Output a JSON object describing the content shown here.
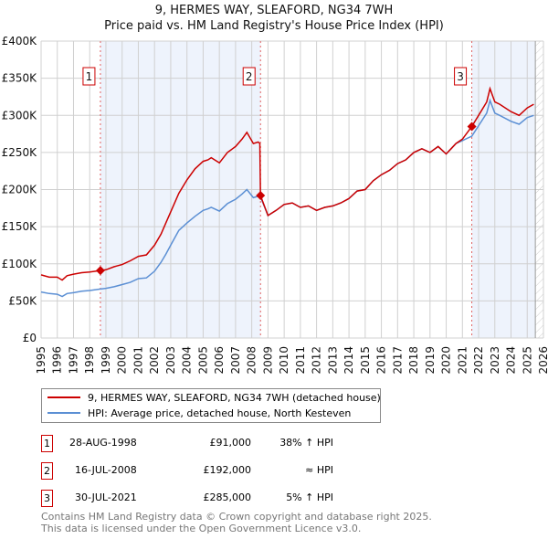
{
  "header": {
    "title": "9, HERMES WAY, SLEAFORD, NG34 7WH",
    "subtitle": "Price paid vs. HM Land Registry's House Price Index (HPI)"
  },
  "legend": {
    "property": "9, HERMES WAY, SLEAFORD, NG34 7WH (detached house)",
    "hpi": "HPI: Average price, detached house, North Kesteven"
  },
  "sales": [
    {
      "num": "1",
      "date": "28-AUG-1998",
      "price": "£91,000",
      "vs_hpi": "38% ↑ HPI"
    },
    {
      "num": "2",
      "date": "16-JUL-2008",
      "price": "£192,000",
      "vs_hpi": "≈ HPI"
    },
    {
      "num": "3",
      "date": "30-JUL-2021",
      "price": "£285,000",
      "vs_hpi": "5% ↑ HPI"
    }
  ],
  "footer": {
    "line1": "Contains HM Land Registry data © Crown copyright and database right 2025.",
    "line2": "This data is licensed under the Open Government Licence v3.0."
  },
  "colors": {
    "property": "#cc0000",
    "hpi": "#5b8fd4",
    "shade": "#eef3fc"
  },
  "chart_data": {
    "type": "line",
    "xlim": [
      1995,
      2026
    ],
    "ylim": [
      0,
      400000
    ],
    "yticks": [
      0,
      50000,
      100000,
      150000,
      200000,
      250000,
      300000,
      350000,
      400000
    ],
    "ytick_labels": [
      "£0",
      "£50K",
      "£100K",
      "£150K",
      "£200K",
      "£250K",
      "£300K",
      "£350K",
      "£400K"
    ],
    "xticks": [
      1995,
      1996,
      1997,
      1998,
      1999,
      2000,
      2001,
      2002,
      2003,
      2004,
      2005,
      2006,
      2007,
      2008,
      2009,
      2010,
      2011,
      2012,
      2013,
      2014,
      2015,
      2016,
      2017,
      2018,
      2019,
      2020,
      2021,
      2022,
      2023,
      2024,
      2025,
      2026
    ],
    "xtick_labels": [
      "1995",
      "1996",
      "1997",
      "1998",
      "1999",
      "2000",
      "2001",
      "2002",
      "2003",
      "2004",
      "2005",
      "2006",
      "2007",
      "2008",
      "2009",
      "2010",
      "2011",
      "2012",
      "2013",
      "2014",
      "2015",
      "2016",
      "2017",
      "2018",
      "2019",
      "2020",
      "2021",
      "2022",
      "2023",
      "2024",
      "2025",
      "2026"
    ],
    "grid": true,
    "shaded_ranges": [
      [
        1998.66,
        2008.54
      ],
      [
        2021.58,
        2025.5
      ]
    ],
    "future_from": 2025.5,
    "sale_markers": [
      {
        "label": "1",
        "x": 1998.66,
        "y": 91000
      },
      {
        "label": "2",
        "x": 2008.54,
        "y": 192000
      },
      {
        "label": "3",
        "x": 2021.58,
        "y": 285000
      }
    ],
    "series": [
      {
        "name": "9, HERMES WAY, SLEAFORD, NG34 7WH (detached house)",
        "color": "#cc0000",
        "x": [
          1995,
          1995.5,
          1996,
          1996.3,
          1996.6,
          1997,
          1997.5,
          1998,
          1998.66,
          1999,
          1999.5,
          2000,
          2000.5,
          2001,
          2001.5,
          2002,
          2002.4,
          2002.7,
          2003,
          2003.5,
          2004,
          2004.5,
          2005,
          2005.3,
          2005.5,
          2006,
          2006.5,
          2007,
          2007.4,
          2007.7,
          2008.1,
          2008.4,
          2008.5,
          2008.54,
          2009,
          2009.5,
          2010,
          2010.5,
          2011,
          2011.5,
          2012,
          2012.5,
          2013,
          2013.5,
          2014,
          2014.5,
          2015,
          2015.5,
          2016,
          2016.5,
          2017,
          2017.5,
          2018,
          2018.5,
          2019,
          2019.5,
          2020,
          2020.3,
          2020.6,
          2021,
          2021.58,
          2022,
          2022.5,
          2022.7,
          2023,
          2023.3,
          2024,
          2024.5,
          2025,
          2025.4
        ],
        "y": [
          85000,
          82000,
          82000,
          78000,
          84000,
          86000,
          88000,
          89000,
          91000,
          92000,
          96000,
          99000,
          104000,
          110000,
          112000,
          125000,
          140000,
          155000,
          170000,
          195000,
          213000,
          228000,
          238000,
          240000,
          243000,
          236000,
          250000,
          258000,
          268000,
          277000,
          262000,
          264000,
          262000,
          192000,
          165000,
          172000,
          180000,
          182000,
          176000,
          178000,
          172000,
          176000,
          178000,
          182000,
          188000,
          198000,
          200000,
          212000,
          220000,
          226000,
          235000,
          240000,
          250000,
          255000,
          250000,
          258000,
          248000,
          255000,
          262000,
          268000,
          285000,
          300000,
          318000,
          336000,
          318000,
          315000,
          305000,
          300000,
          310000,
          315000
        ]
      },
      {
        "name": "HPI: Average price, detached house, North Kesteven",
        "color": "#5b8fd4",
        "x": [
          1995,
          1995.5,
          1996,
          1996.3,
          1996.6,
          1997,
          1997.5,
          1998,
          1998.66,
          1999,
          1999.5,
          2000,
          2000.5,
          2001,
          2001.5,
          2002,
          2002.4,
          2002.7,
          2003,
          2003.5,
          2004,
          2004.5,
          2005,
          2005.3,
          2005.5,
          2006,
          2006.5,
          2007,
          2007.4,
          2007.7,
          2008.1,
          2008.4,
          2008.54,
          2009,
          2009.5,
          2010,
          2010.5,
          2011,
          2011.5,
          2012,
          2012.5,
          2013,
          2013.5,
          2014,
          2014.5,
          2015,
          2015.5,
          2016,
          2016.5,
          2017,
          2017.5,
          2018,
          2018.5,
          2019,
          2019.5,
          2020,
          2020.3,
          2020.6,
          2021,
          2021.58,
          2022,
          2022.5,
          2022.7,
          2023,
          2023.3,
          2024,
          2024.5,
          2025,
          2025.4
        ],
        "y": [
          62000,
          60000,
          59000,
          56000,
          60000,
          61000,
          63000,
          64000,
          66000,
          67000,
          69000,
          72000,
          75000,
          80000,
          81000,
          90000,
          102000,
          113000,
          125000,
          145000,
          155000,
          164000,
          172000,
          174000,
          176000,
          171000,
          181000,
          187000,
          194000,
          200000,
          189000,
          191000,
          190000,
          165000,
          172000,
          180000,
          182000,
          176000,
          178000,
          172000,
          176000,
          178000,
          182000,
          188000,
          198000,
          200000,
          212000,
          220000,
          226000,
          235000,
          240000,
          250000,
          255000,
          250000,
          258000,
          248000,
          255000,
          262000,
          266000,
          272000,
          286000,
          303000,
          320000,
          303000,
          300000,
          292000,
          288000,
          297000,
          300000
        ]
      }
    ]
  }
}
